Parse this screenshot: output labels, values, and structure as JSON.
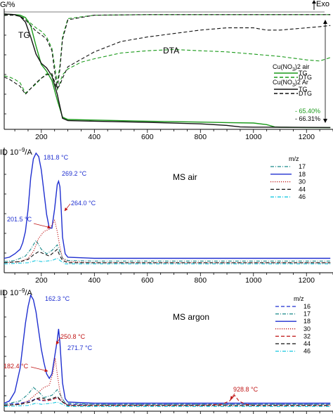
{
  "colors": {
    "axis": "#000000",
    "tg_air": "#1a9a1a",
    "tg_ar": "#111111",
    "blue": "#1f2fd0",
    "red": "#c01515",
    "cyan": "#19c8e0",
    "teal": "#1a8a8a",
    "grey_dash": "#555555"
  },
  "chart_data": [
    {
      "type": "line",
      "id": "tg_dta",
      "ylabel": "G/%",
      "top_right_label": "Exo",
      "x_ticks": [
        200,
        400,
        600,
        800,
        1000,
        1200
      ],
      "xlim": [
        60,
        1300
      ],
      "ylim": [
        0,
        100
      ],
      "curve_labels": [
        {
          "text": "TG"
        },
        {
          "text": "DTA"
        }
      ],
      "legend": {
        "title_air": "Cu(NO",
        "title_air_sub": "3",
        "title_air_end": ")2 air",
        "title_ar": "Cu(NO",
        "title_ar_sub": "3",
        "title_ar_end": ")2 Ar",
        "entries": [
          "TG",
          "DTG",
          "TG",
          "DTG"
        ]
      },
      "mass_loss_labels": [
        "- 65.40%",
        "- 66.31%"
      ],
      "series": [
        {
          "name": "TG",
          "group": "air",
          "style": "solid",
          "color_key": "tg_air",
          "x": [
            60,
            100,
            120,
            140,
            160,
            180,
            200,
            220,
            240,
            260,
            280,
            300,
            400,
            600,
            800,
            900,
            1000,
            1050,
            1080,
            1100,
            1200,
            1290
          ],
          "y": [
            100,
            99.5,
            99,
            97,
            90,
            72,
            56,
            50,
            42,
            25,
            10,
            8,
            7.5,
            6.5,
            5.7,
            5.3,
            4.9,
            3.5,
            1.5,
            1.2,
            1.0,
            0.9
          ]
        },
        {
          "name": "TG",
          "group": "Ar",
          "style": "solid",
          "color_key": "tg_ar",
          "x": [
            60,
            100,
            120,
            140,
            160,
            180,
            200,
            220,
            240,
            260,
            280,
            300,
            400,
            600,
            800,
            900,
            950,
            1000,
            1100,
            1200,
            1290
          ],
          "y": [
            100,
            99.5,
            98,
            93,
            80,
            65,
            57,
            53,
            46,
            30,
            9,
            7,
            6.5,
            5.5,
            4.2,
            2.8,
            1.5,
            1.3,
            1.2,
            1.1,
            1.0
          ]
        }
      ],
      "dta_traces": [
        {
          "name": "DTA",
          "group": "air",
          "style": "dash",
          "color_key": "tg_air",
          "x": [
            60,
            80,
            100,
            120,
            140,
            160,
            180,
            200,
            220,
            240,
            250,
            260,
            270,
            280,
            300,
            350,
            400,
            500,
            600,
            700,
            800,
            900,
            1000,
            1100,
            1200,
            1250,
            1290
          ],
          "y": [
            46,
            45,
            43,
            40,
            31,
            35,
            39,
            44,
            48,
            47,
            40,
            34,
            40,
            47,
            52,
            58,
            61,
            66,
            68,
            69,
            68,
            67,
            65,
            63,
            60,
            59,
            62
          ]
        },
        {
          "name": "DTA",
          "group": "Ar",
          "style": "dash",
          "color_key": "tg_ar",
          "x": [
            60,
            80,
            100,
            120,
            140,
            160,
            180,
            200,
            220,
            240,
            250,
            260,
            270,
            280,
            300,
            400,
            500,
            600,
            700,
            800,
            900,
            1000,
            1050,
            1100,
            1150,
            1200,
            1250,
            1290
          ],
          "y": [
            45,
            43,
            40,
            37,
            30,
            35,
            40,
            44,
            47,
            48,
            41,
            35,
            38,
            44,
            54,
            67,
            76,
            80,
            83,
            86,
            88,
            88,
            86,
            86,
            87,
            88,
            89,
            90
          ]
        },
        {
          "name": "DTG",
          "group": "air",
          "style": "dash",
          "color_key": "tg_air",
          "x": [
            60,
            100,
            120,
            140,
            160,
            180,
            200,
            220,
            240,
            250,
            260,
            270,
            280,
            300,
            400,
            600,
            800,
            1000,
            1200,
            1290
          ],
          "y": [
            99,
            99,
            98,
            96,
            92,
            88,
            85,
            80,
            70,
            55,
            40,
            55,
            80,
            96,
            99,
            99.5,
            99.5,
            99.5,
            99.5,
            99.5
          ]
        },
        {
          "name": "DTG",
          "group": "Ar",
          "style": "dash",
          "color_key": "tg_ar",
          "x": [
            60,
            100,
            120,
            140,
            160,
            180,
            200,
            220,
            240,
            250,
            260,
            270,
            280,
            300,
            400,
            600,
            800,
            1000,
            1200,
            1290
          ],
          "y": [
            99,
            99,
            98,
            95,
            90,
            85,
            82,
            78,
            68,
            50,
            35,
            52,
            78,
            95,
            99,
            99.5,
            99.5,
            99.5,
            99.5,
            99.5
          ]
        }
      ]
    },
    {
      "type": "line",
      "id": "ms_air",
      "ylabel": "ID 10",
      "ylabel_sup": "−9",
      "ylabel_unit": "/A",
      "title": "MS air",
      "x_ticks": [
        200,
        400,
        600,
        800,
        1000,
        1200
      ],
      "xlim": [
        60,
        1300
      ],
      "ylim": [
        0,
        100
      ],
      "legend_title": "m/z",
      "annotations": [
        "181.8 °C",
        "269.2 °C",
        "264.0 °C",
        "201.5 °C"
      ],
      "series": [
        {
          "name": "17",
          "style": "dashdot",
          "color_key": "teal",
          "x": [
            60,
            100,
            140,
            160,
            180,
            200,
            220,
            240,
            260,
            270,
            280,
            300,
            400,
            600,
            800,
            1000,
            1200,
            1290
          ],
          "y": [
            3,
            4,
            8,
            14,
            22,
            14,
            10,
            13,
            18,
            12,
            6,
            4,
            3.5,
            3.5,
            3.5,
            3.5,
            3.5,
            3.5
          ]
        },
        {
          "name": "18",
          "style": "solid",
          "color_key": "blue",
          "x": [
            60,
            80,
            100,
            120,
            130,
            140,
            150,
            160,
            170,
            180,
            190,
            200,
            210,
            220,
            230,
            240,
            250,
            260,
            265,
            270,
            275,
            280,
            290,
            300,
            400,
            600,
            800,
            1000,
            1200,
            1290
          ],
          "y": [
            6,
            7,
            10,
            14,
            20,
            30,
            50,
            78,
            95,
            100,
            97,
            85,
            65,
            45,
            33,
            33,
            50,
            72,
            75,
            70,
            50,
            25,
            10,
            7,
            6,
            6,
            6,
            6,
            6,
            6
          ]
        },
        {
          "name": "30",
          "style": "dot",
          "color_key": "red",
          "x": [
            60,
            120,
            150,
            170,
            190,
            210,
            230,
            250,
            260,
            270,
            280,
            300,
            400,
            1290
          ],
          "y": [
            2,
            3,
            6,
            12,
            24,
            30,
            32,
            40,
            30,
            16,
            6,
            3,
            2,
            2
          ]
        },
        {
          "name": "44",
          "style": "dash",
          "color_key": "tg_ar",
          "x": [
            60,
            120,
            150,
            170,
            190,
            210,
            230,
            250,
            260,
            270,
            280,
            300,
            400,
            1290
          ],
          "y": [
            2,
            3,
            5,
            9,
            12,
            10,
            8,
            12,
            14,
            8,
            4,
            2,
            2,
            2
          ]
        },
        {
          "name": "46",
          "style": "dashdot",
          "color_key": "cyan",
          "x": [
            60,
            150,
            180,
            200,
            240,
            260,
            270,
            290,
            400,
            1290
          ],
          "y": [
            1,
            2,
            4,
            3,
            4,
            6,
            4,
            1,
            1,
            1
          ]
        }
      ]
    },
    {
      "type": "line",
      "id": "ms_argon",
      "ylabel": "ID 10",
      "ylabel_sup": "−9",
      "ylabel_unit": "/A",
      "title": "MS argon",
      "x_ticks": [
        200,
        400,
        600,
        800,
        1000,
        1200
      ],
      "xlim": [
        60,
        1300
      ],
      "ylim": [
        0,
        100
      ],
      "legend_title": "m/z",
      "annotations": [
        "162.3 °C",
        "250.8 °C",
        "271.7 °C",
        "182.4 °C",
        "928.8 °C"
      ],
      "series": [
        {
          "name": "16",
          "style": "dash",
          "color_key": "blue",
          "x": [
            60,
            120,
            160,
            180,
            200,
            240,
            260,
            280,
            300,
            1290
          ],
          "y": [
            3,
            4,
            6,
            8,
            6,
            7,
            9,
            5,
            3,
            3
          ]
        },
        {
          "name": "17",
          "style": "dashdot",
          "color_key": "teal",
          "x": [
            60,
            120,
            150,
            170,
            190,
            210,
            240,
            260,
            275,
            290,
            400,
            1290
          ],
          "y": [
            3,
            6,
            12,
            18,
            14,
            9,
            11,
            16,
            10,
            4,
            3,
            3
          ]
        },
        {
          "name": "18",
          "style": "solid",
          "color_key": "blue",
          "x": [
            60,
            80,
            100,
            120,
            130,
            140,
            150,
            160,
            170,
            180,
            190,
            200,
            210,
            220,
            230,
            240,
            250,
            260,
            265,
            270,
            275,
            280,
            290,
            300,
            400,
            600,
            800,
            1000,
            1200,
            1290
          ],
          "y": [
            4,
            6,
            14,
            35,
            55,
            75,
            90,
            100,
            96,
            85,
            68,
            52,
            40,
            30,
            26,
            30,
            45,
            60,
            70,
            58,
            40,
            22,
            8,
            5,
            4,
            4,
            4,
            4,
            4,
            4
          ]
        },
        {
          "name": "30",
          "style": "dot",
          "color_key": "red",
          "x": [
            60,
            120,
            150,
            170,
            190,
            210,
            230,
            245,
            252,
            260,
            270,
            280,
            300,
            400,
            1290
          ],
          "y": [
            2,
            3,
            6,
            10,
            14,
            18,
            20,
            32,
            44,
            30,
            14,
            5,
            2,
            2,
            2
          ]
        },
        {
          "name": "32",
          "style": "dash",
          "color_key": "red",
          "x": [
            60,
            120,
            160,
            180,
            200,
            220,
            240,
            260,
            280,
            300,
            800,
            880,
            910,
            929,
            945,
            970,
            1000,
            1290
          ],
          "y": [
            2,
            3,
            5,
            8,
            7,
            6,
            7,
            9,
            5,
            2,
            2,
            3,
            6,
            11,
            6,
            3,
            2,
            2
          ]
        },
        {
          "name": "44",
          "style": "dash",
          "color_key": "tg_ar",
          "x": [
            60,
            120,
            160,
            180,
            200,
            220,
            240,
            260,
            280,
            300,
            1290
          ],
          "y": [
            2,
            3,
            5,
            8,
            9,
            7,
            8,
            10,
            5,
            2,
            2
          ]
        },
        {
          "name": "46",
          "style": "dashdot",
          "color_key": "cyan",
          "x": [
            60,
            150,
            180,
            200,
            240,
            260,
            280,
            300,
            1290
          ],
          "y": [
            1,
            2,
            4,
            3,
            4,
            5,
            3,
            1,
            1
          ]
        }
      ]
    }
  ]
}
